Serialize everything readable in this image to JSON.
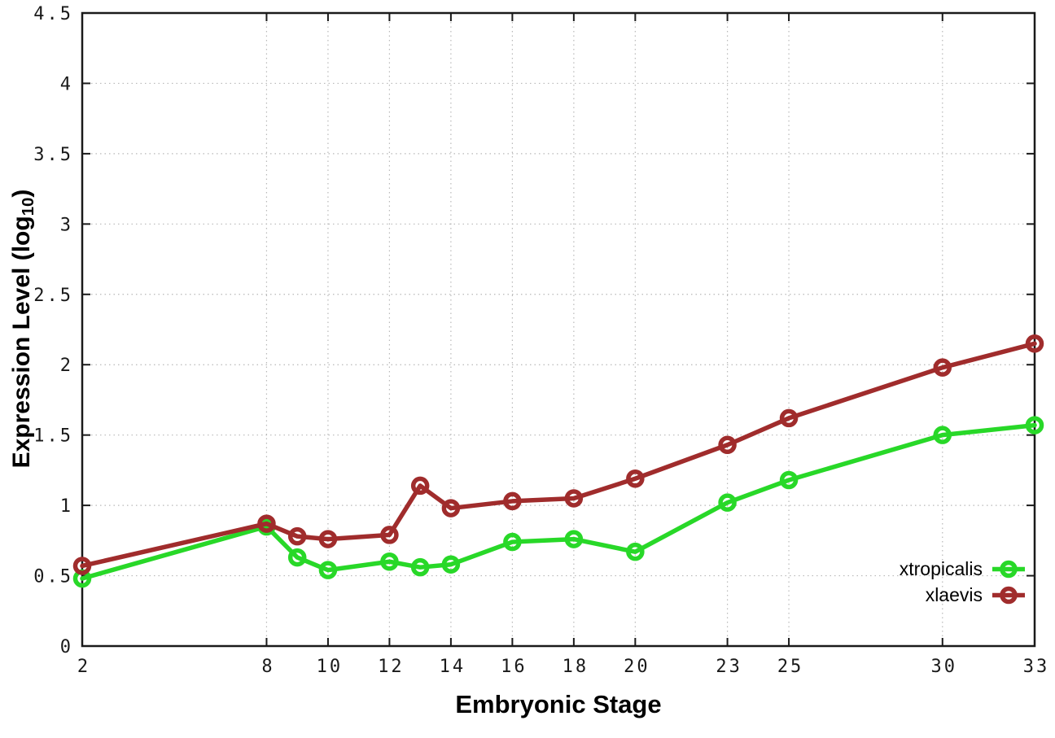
{
  "chart_data": {
    "type": "line",
    "title": "",
    "xlabel": "Embryonic Stage",
    "ylabel": "Expression Level (log10)",
    "ylabel_parts": {
      "prefix": "Expression Level (log",
      "sub": "10",
      "suffix": ")"
    },
    "xlim": [
      2,
      33
    ],
    "ylim": [
      0,
      4.5
    ],
    "grid": true,
    "legend_position": "inside-bottom-right",
    "xtick_values": [
      2,
      8,
      10,
      12,
      14,
      16,
      18,
      20,
      23,
      25,
      30,
      33
    ],
    "xtick_labels": [
      "2",
      "8",
      "10",
      "12",
      "14",
      "16",
      "18",
      "20",
      "23",
      "25",
      "30",
      "33"
    ],
    "ytick_values": [
      0,
      0.5,
      1,
      1.5,
      2,
      2.5,
      3,
      3.5,
      4,
      4.5
    ],
    "ytick_labels": [
      "0",
      "0.5",
      "1",
      "1.5",
      "2",
      "2.5",
      "3",
      "3.5",
      "4",
      "4.5"
    ],
    "x": [
      2,
      8,
      9,
      10,
      12,
      13,
      14,
      16,
      18,
      20,
      23,
      25,
      30,
      33
    ],
    "series": [
      {
        "name": "xtropicalis",
        "color": "#28d828",
        "values": [
          0.48,
          0.85,
          0.63,
          0.54,
          0.6,
          0.56,
          0.58,
          0.74,
          0.76,
          0.67,
          1.02,
          1.18,
          1.5,
          1.57
        ]
      },
      {
        "name": "xlaevis",
        "color": "#a02c2c",
        "values": [
          0.57,
          0.87,
          0.78,
          0.76,
          0.79,
          1.14,
          0.98,
          1.03,
          1.05,
          1.19,
          1.43,
          1.62,
          1.98,
          2.15
        ]
      }
    ],
    "colors": {
      "grid": "#b8b8b8",
      "border": "#1a1a1a",
      "tick": "#1a1a1a"
    }
  }
}
